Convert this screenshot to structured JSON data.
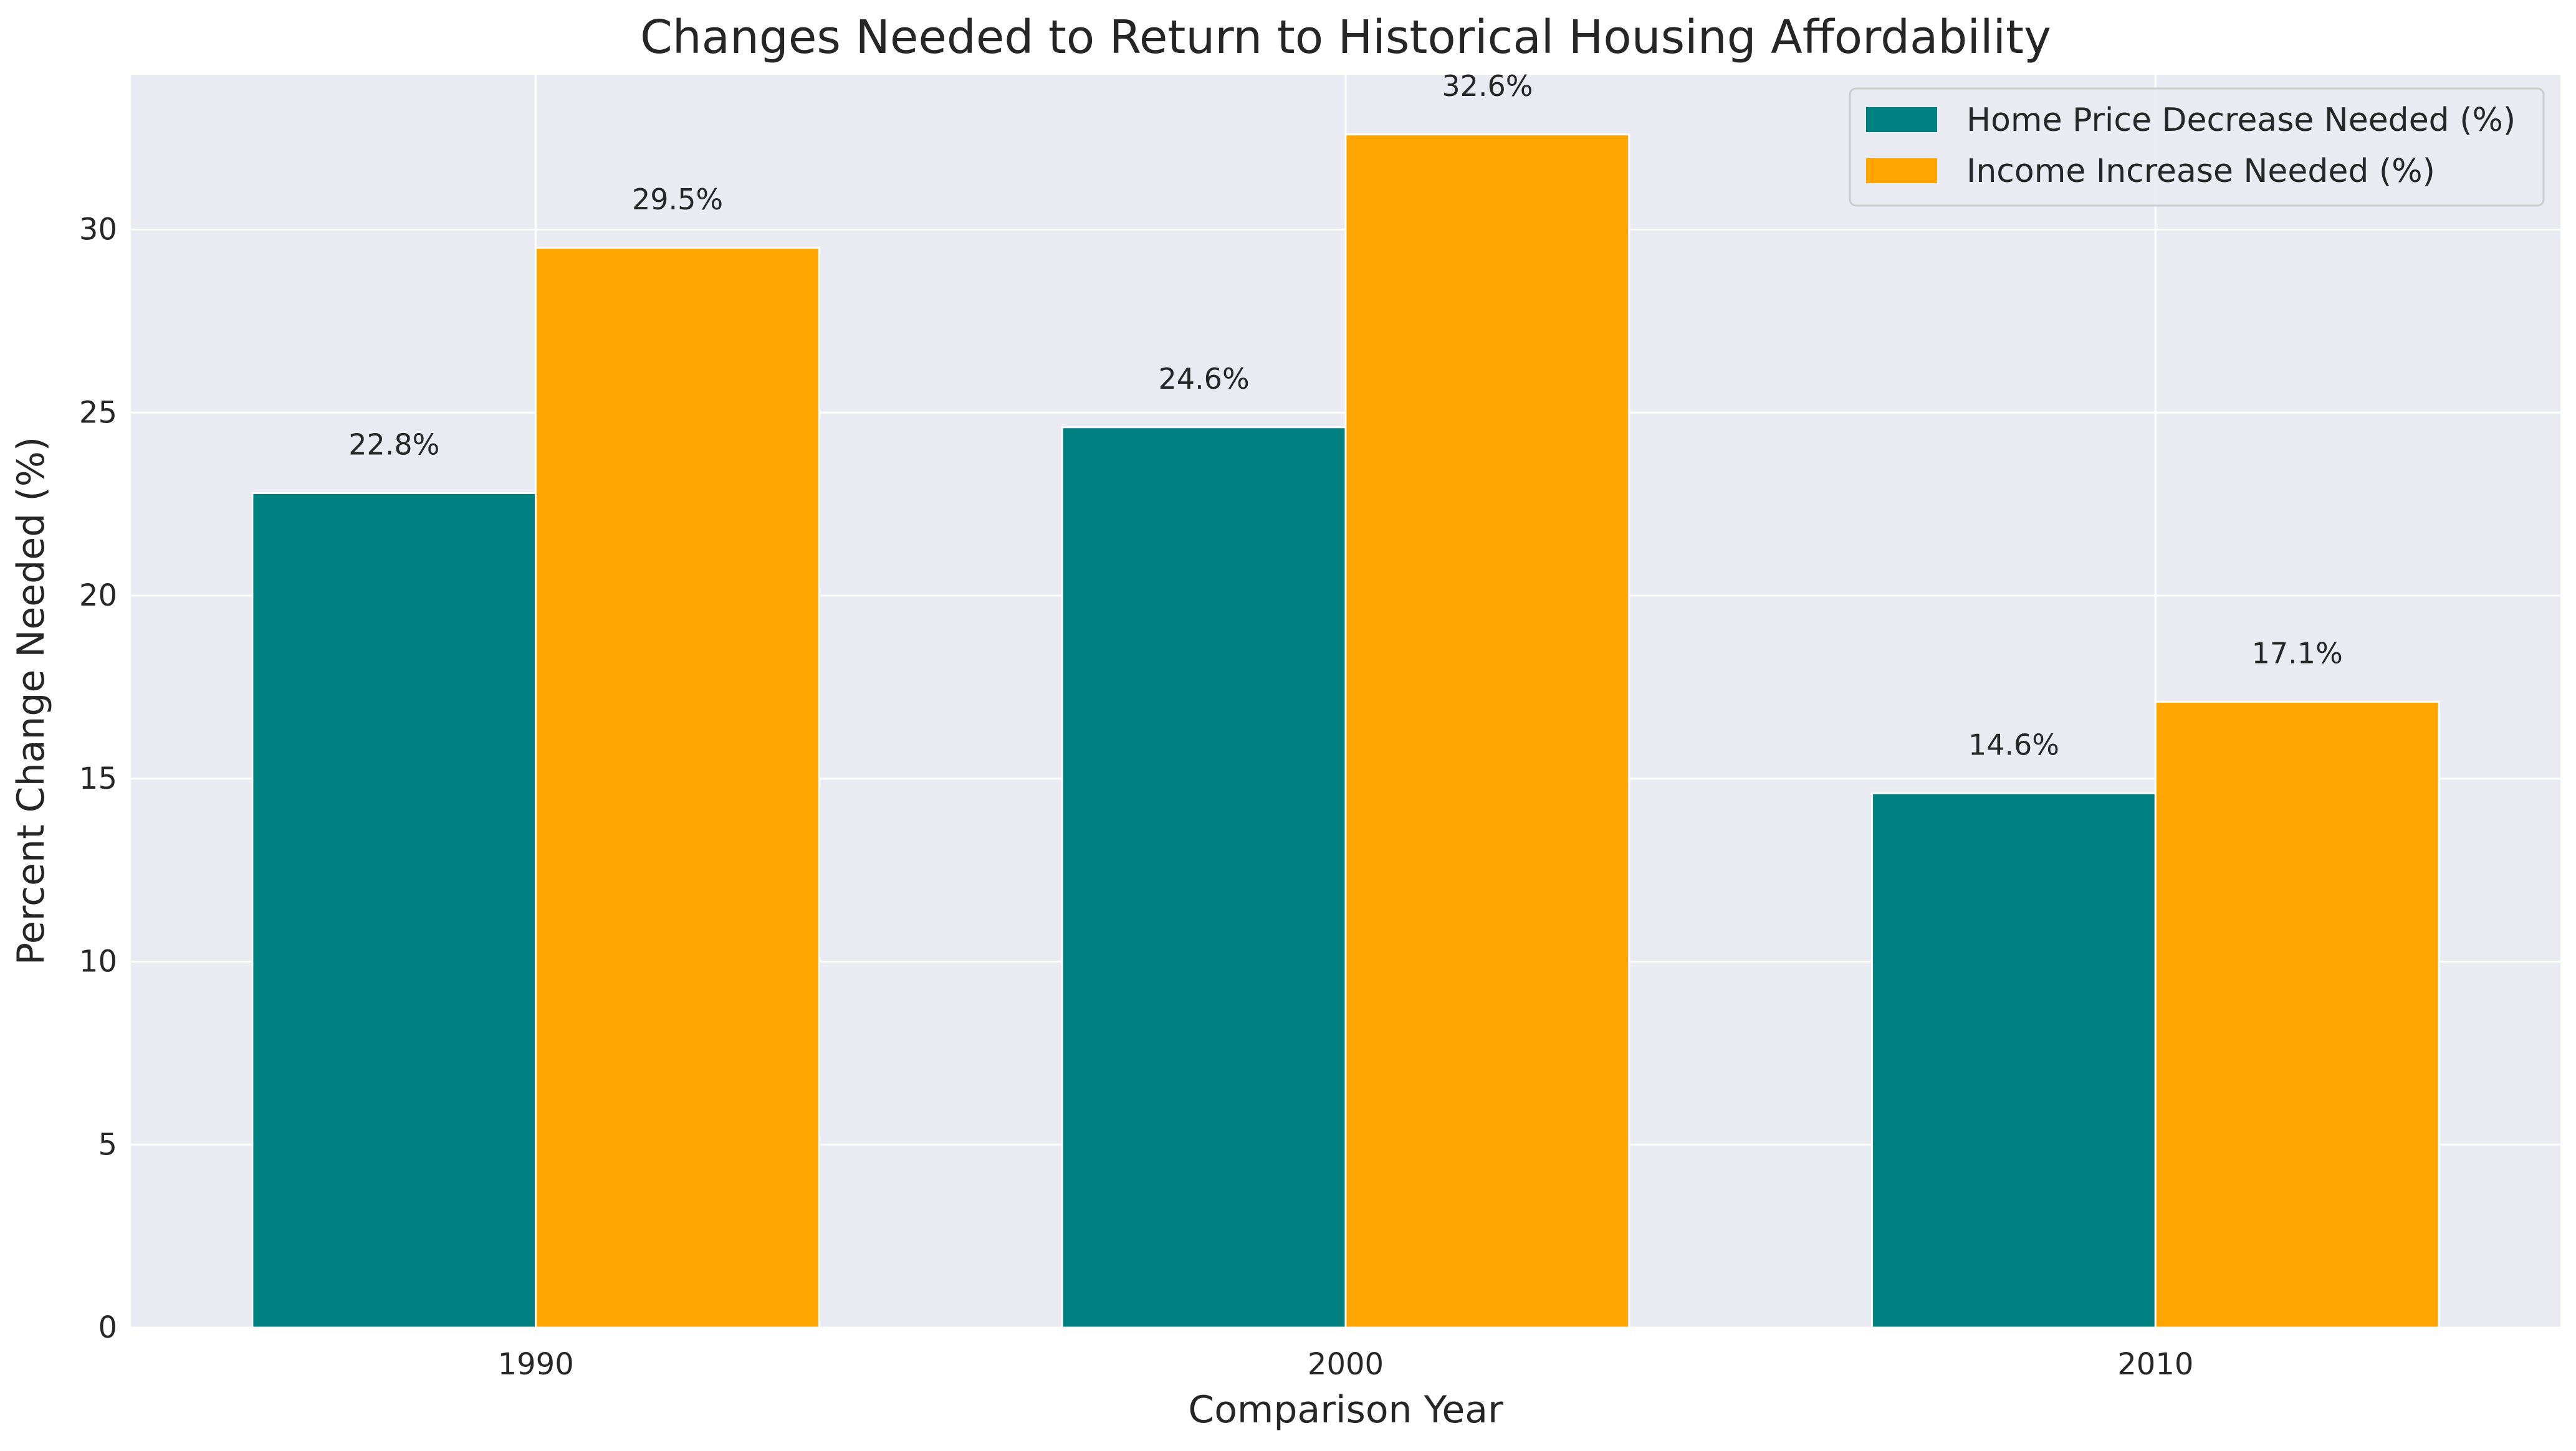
{
  "chart_data": {
    "type": "bar",
    "title": "Changes Needed to Return to Historical Housing Affordability",
    "xlabel": "Comparison Year",
    "ylabel": "Percent Change Needed (%)",
    "categories": [
      "1990",
      "2000",
      "2010"
    ],
    "series": [
      {
        "name": "Home Price Decrease Needed (%)",
        "values": [
          22.8,
          24.6,
          14.6
        ],
        "labels": [
          "22.8%",
          "24.6%",
          "14.6%"
        ],
        "color": "#008080"
      },
      {
        "name": "Income Increase Needed (%)",
        "values": [
          29.5,
          32.6,
          17.1
        ],
        "labels": [
          "29.5%",
          "32.6%",
          "17.1%"
        ],
        "color": "#FFA500"
      }
    ],
    "ylim": [
      0,
      34.23
    ],
    "yticks": [
      0,
      5,
      10,
      15,
      20,
      25,
      30
    ],
    "ytick_labels": [
      "0",
      "5",
      "10",
      "15",
      "20",
      "25",
      "30"
    ],
    "grid": true,
    "legend_position": "top-right",
    "background_color": "#EAEAF2"
  }
}
